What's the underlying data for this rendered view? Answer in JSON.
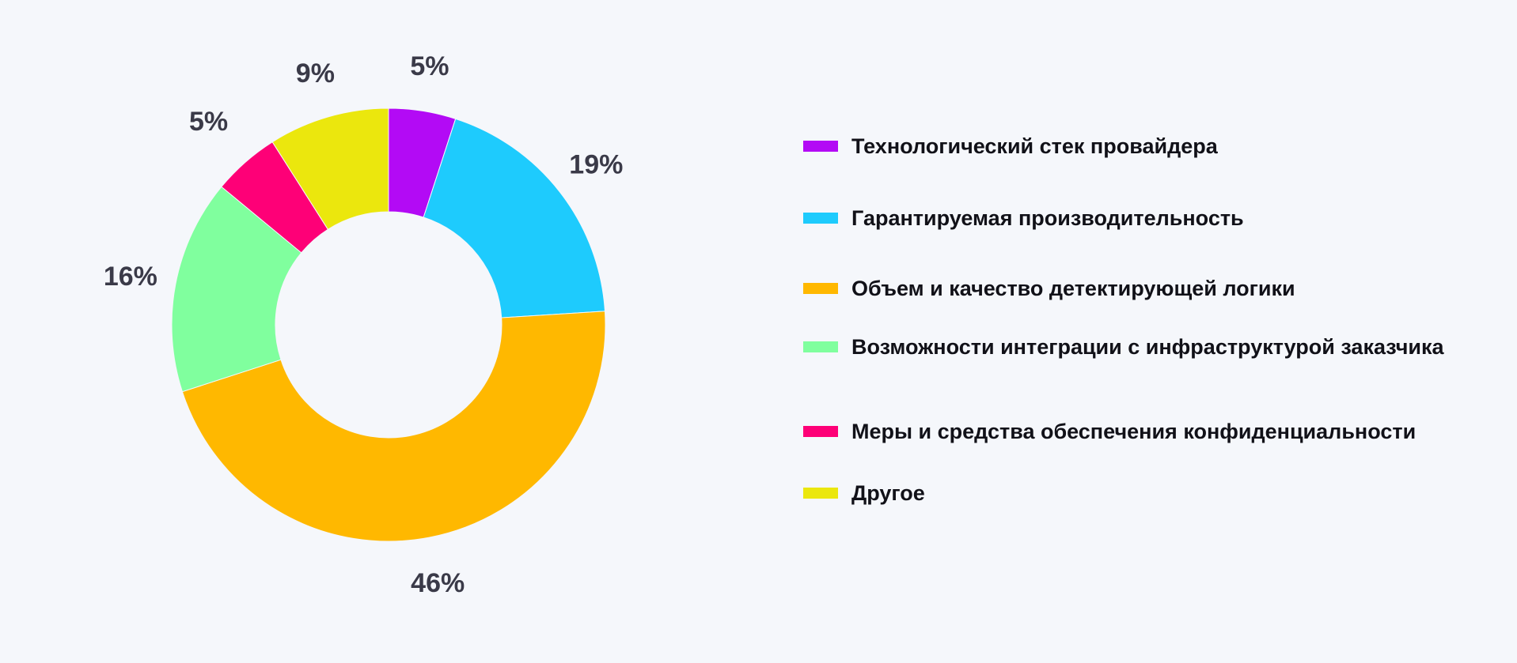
{
  "chart_data": {
    "type": "pie",
    "donut": true,
    "title": "",
    "legend_position": "right",
    "slices": [
      {
        "label": "Технологический стек провайдера",
        "value": 5,
        "value_label": "5%",
        "color": "#b30af5"
      },
      {
        "label": "Гарантируемая производительность",
        "value": 19,
        "value_label": "19%",
        "color": "#1ecbfd"
      },
      {
        "label": "Объем и качество детектирующей логики",
        "value": 46,
        "value_label": "46%",
        "color": "#ffb800"
      },
      {
        "label": "Возможности интеграции с инфраструктурой заказчика",
        "value": 16,
        "value_label": "16%",
        "color": "#80ff9e"
      },
      {
        "label": "Меры и средства обеспечения конфиденциальности",
        "value": 5,
        "value_label": "5%",
        "color": "#fe0077"
      },
      {
        "label": "Другое",
        "value": 9,
        "value_label": "9%",
        "color": "#ebe70d"
      }
    ]
  }
}
